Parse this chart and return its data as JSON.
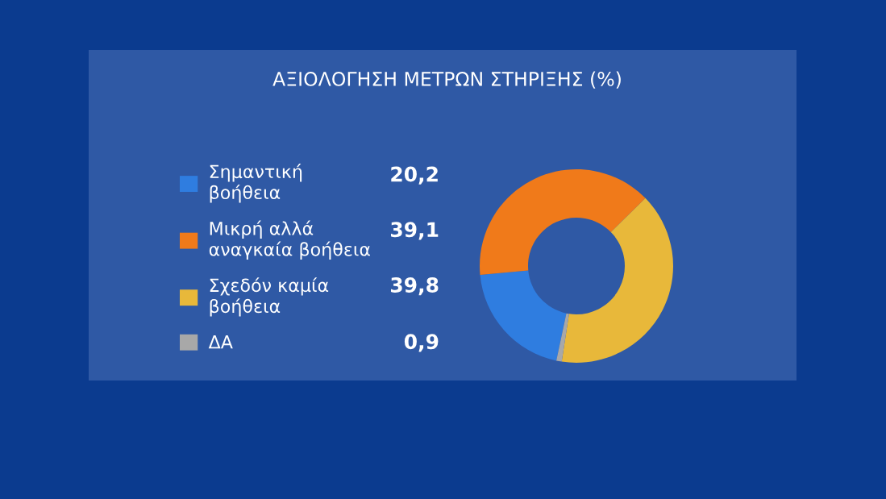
{
  "chart_data": {
    "type": "donut",
    "title": "ΑΞΙΟΛΟΓΗΣΗ ΜΕΤΡΩΝ ΣΤΗΡΙΞΗΣ (%)",
    "categories": [
      "Σημαντική\nβοήθεια",
      "Μικρή αλλά\nαναγκαία βοήθεια",
      "Σχεδόν καμία\nβοήθεια",
      "ΔΑ"
    ],
    "values": [
      20.2,
      39.1,
      39.8,
      0.9
    ],
    "colors": [
      "#2f7de0",
      "#f07a1a",
      "#e8b83a",
      "#a8a8a8"
    ],
    "value_labels": [
      "20,2",
      "39,1",
      "39,8",
      "0,9"
    ],
    "legend": "left"
  }
}
